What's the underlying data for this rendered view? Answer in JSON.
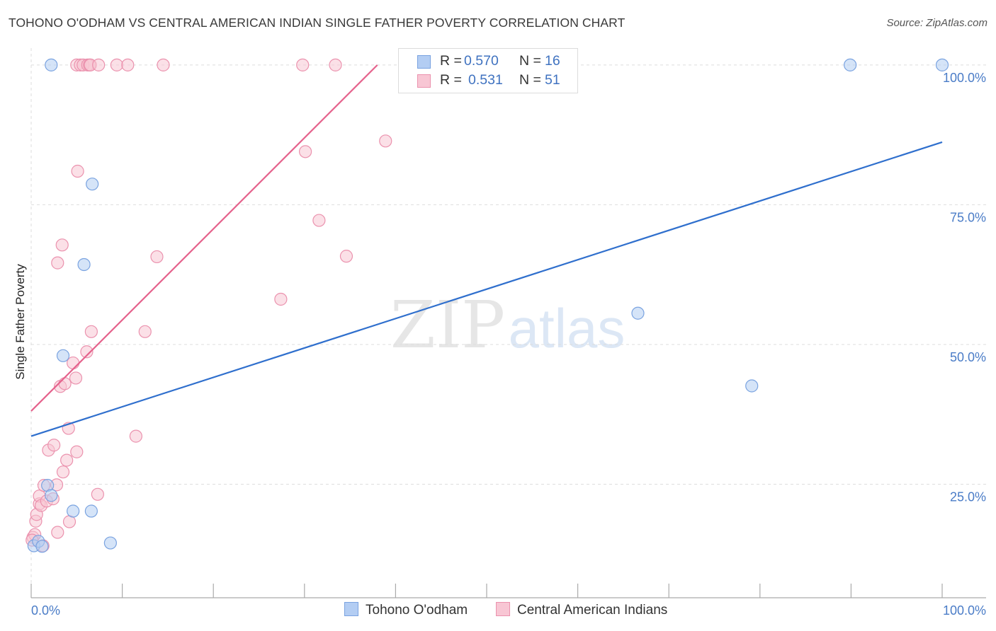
{
  "header": {
    "title": "TOHONO O'ODHAM VS CENTRAL AMERICAN INDIAN SINGLE FATHER POVERTY CORRELATION CHART",
    "source": "Source: ZipAtlas.com"
  },
  "watermark": {
    "part1": "ZIP",
    "part2": "atlas"
  },
  "legend_top": {
    "rows": [
      {
        "r_label": "R =",
        "r_value": "0.570",
        "n_label": "N =",
        "n_value": "16"
      },
      {
        "r_label": "R =",
        "r_value": "0.531",
        "n_label": "N =",
        "n_value": "51"
      }
    ]
  },
  "legend_bottom": {
    "items": [
      {
        "label": "Tohono O'odham"
      },
      {
        "label": "Central American Indians"
      }
    ]
  },
  "colors": {
    "blue_fill": "#b3cdf3",
    "blue_stroke": "#7aa3e0",
    "blue_line": "#2f6fcd",
    "pink_fill": "#f8c6d4",
    "pink_stroke": "#eb92ae",
    "pink_line": "#e5628c",
    "grid": "#dddddd",
    "tick_label": "#4a7cc7"
  },
  "chart_data": {
    "type": "scatter",
    "title": "TOHONO O'ODHAM VS CENTRAL AMERICAN INDIAN SINGLE FATHER POVERTY CORRELATION CHART",
    "xlabel": "",
    "ylabel": "Single Father Poverty",
    "xlim": [
      0,
      100
    ],
    "ylim": [
      4.7,
      101.5
    ],
    "x_tick_labels": [
      "0.0%",
      "100.0%"
    ],
    "y_ticks": [
      25,
      50,
      75,
      100
    ],
    "y_tick_labels": [
      "25.0%",
      "50.0%",
      "75.0%",
      "100.0%"
    ],
    "series": [
      {
        "name": "Tohono O'odham",
        "color": "blue",
        "R": 0.57,
        "N": 16,
        "points": [
          [
            0.3,
            14.0
          ],
          [
            0.8,
            14.8
          ],
          [
            1.2,
            13.9
          ],
          [
            1.8,
            24.8
          ],
          [
            2.2,
            23.0
          ],
          [
            2.2,
            100.0
          ],
          [
            3.5,
            48.0
          ],
          [
            4.6,
            20.2
          ],
          [
            5.8,
            64.3
          ],
          [
            6.6,
            20.2
          ],
          [
            6.7,
            78.7
          ],
          [
            8.7,
            14.5
          ],
          [
            66.6,
            55.6
          ],
          [
            79.1,
            42.6
          ],
          [
            89.9,
            100.0
          ],
          [
            100.0,
            100.0
          ]
        ],
        "trend": {
          "x": [
            0,
            100
          ],
          "y": [
            33.6,
            86.2
          ]
        }
      },
      {
        "name": "Central American Indians",
        "color": "pink",
        "R": 0.531,
        "N": 51,
        "points": [
          [
            0.2,
            15.5
          ],
          [
            0.4,
            16.0
          ],
          [
            0.5,
            18.4
          ],
          [
            0.6,
            19.6
          ],
          [
            0.9,
            21.5
          ],
          [
            0.9,
            22.9
          ],
          [
            1.1,
            21.2
          ],
          [
            1.3,
            14.0
          ],
          [
            1.4,
            24.8
          ],
          [
            1.7,
            22.0
          ],
          [
            1.9,
            31.1
          ],
          [
            2.4,
            22.4
          ],
          [
            2.5,
            32.0
          ],
          [
            2.8,
            24.9
          ],
          [
            2.9,
            16.4
          ],
          [
            2.9,
            64.6
          ],
          [
            3.2,
            42.5
          ],
          [
            3.4,
            67.8
          ],
          [
            3.5,
            27.2
          ],
          [
            3.7,
            43.0
          ],
          [
            3.9,
            29.3
          ],
          [
            4.1,
            35.0
          ],
          [
            4.2,
            18.3
          ],
          [
            4.6,
            46.7
          ],
          [
            4.9,
            44.0
          ],
          [
            5.0,
            30.8
          ],
          [
            5.0,
            100.0
          ],
          [
            5.1,
            81.0
          ],
          [
            5.4,
            100.0
          ],
          [
            5.7,
            100.0
          ],
          [
            6.1,
            48.7
          ],
          [
            6.2,
            100.0
          ],
          [
            6.4,
            100.0
          ],
          [
            6.5,
            100.0
          ],
          [
            6.6,
            52.3
          ],
          [
            7.3,
            23.2
          ],
          [
            7.4,
            100.0
          ],
          [
            9.4,
            100.0
          ],
          [
            10.6,
            100.0
          ],
          [
            11.5,
            33.6
          ],
          [
            12.5,
            52.3
          ],
          [
            13.8,
            65.7
          ],
          [
            14.5,
            100.0
          ],
          [
            27.4,
            58.1
          ],
          [
            29.8,
            100.0
          ],
          [
            30.1,
            84.5
          ],
          [
            31.6,
            72.2
          ],
          [
            33.4,
            100.0
          ],
          [
            34.6,
            65.8
          ],
          [
            38.9,
            86.4
          ],
          [
            0.1,
            15.0
          ]
        ],
        "trend": {
          "x": [
            0,
            38
          ],
          "y": [
            38.1,
            100.0
          ]
        }
      }
    ]
  }
}
